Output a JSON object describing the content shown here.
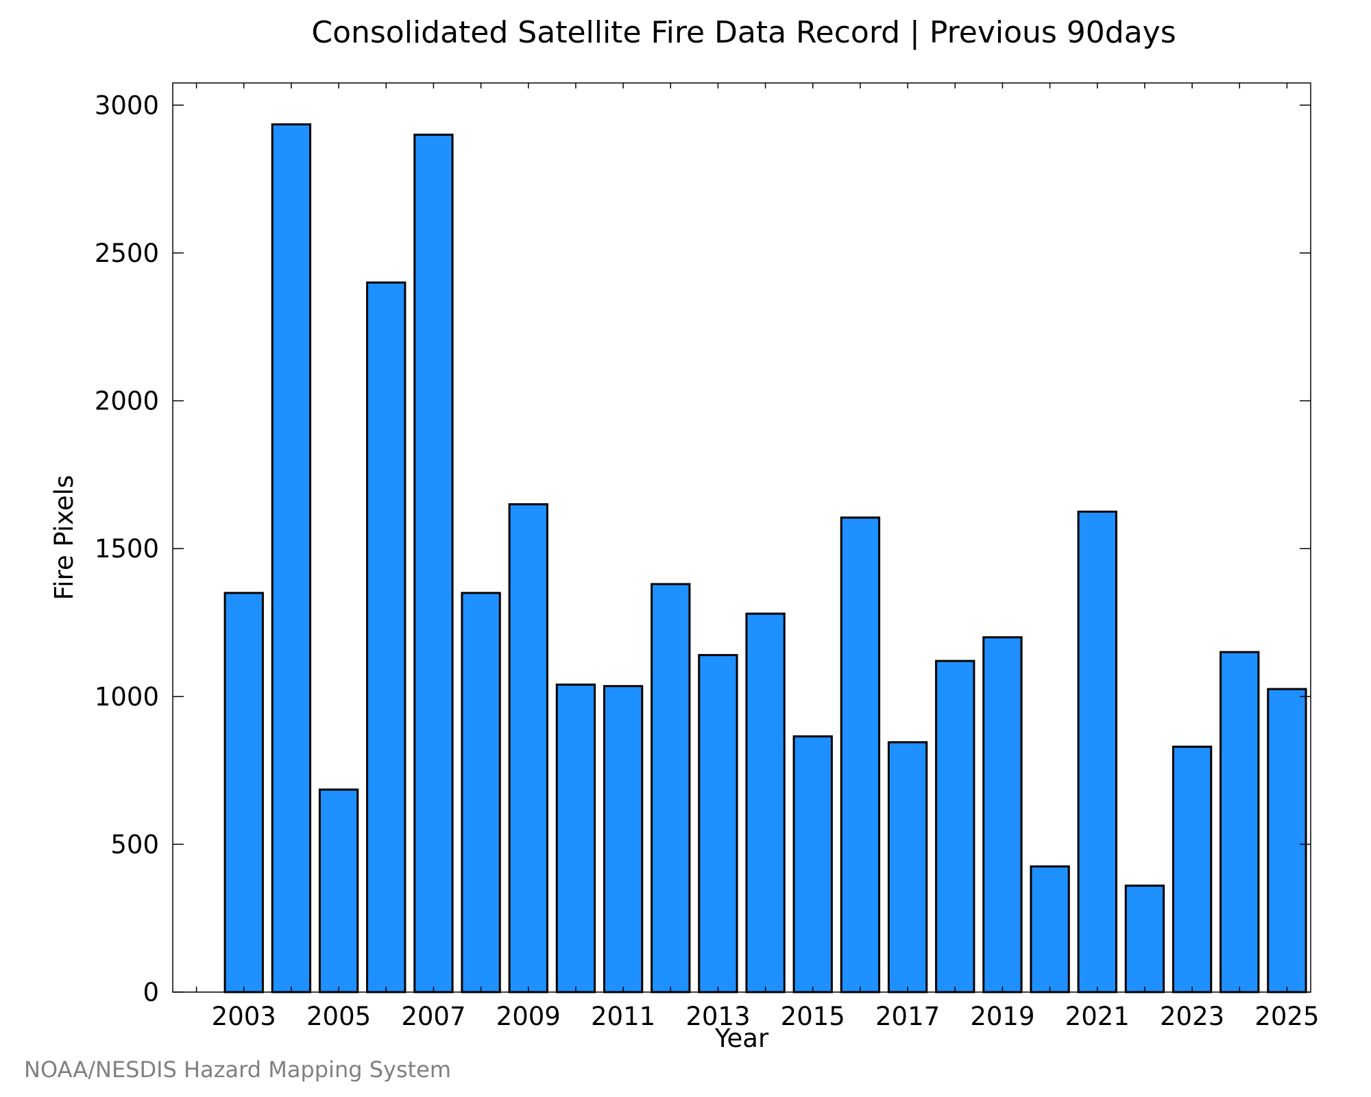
{
  "chart_data": {
    "type": "bar",
    "title": "Consolidated Satellite Fire Data Record | Previous 90days",
    "xlabel": "Year",
    "ylabel": "Fire Pixels",
    "categories": [
      2003,
      2004,
      2005,
      2006,
      2007,
      2008,
      2009,
      2010,
      2011,
      2012,
      2013,
      2014,
      2015,
      2016,
      2017,
      2018,
      2019,
      2020,
      2021,
      2022,
      2023,
      2024,
      2025
    ],
    "values": [
      1350,
      2935,
      685,
      2400,
      2900,
      1350,
      1650,
      1040,
      1035,
      1380,
      1140,
      1280,
      865,
      1605,
      845,
      1120,
      1200,
      425,
      1625,
      360,
      830,
      1150,
      1025
    ],
    "x_tick_labels": [
      "2003",
      "2005",
      "2007",
      "2009",
      "2011",
      "2013",
      "2015",
      "2017",
      "2019",
      "2021",
      "2023",
      "2025"
    ],
    "y_tick_labels": [
      "0",
      "500",
      "1000",
      "1500",
      "2000",
      "2500",
      "3000"
    ],
    "ylim": [
      0,
      3075
    ],
    "xlim": [
      2001.5,
      2025.5
    ],
    "bar_color": "#1e90ff",
    "bar_edge_color": "#000000",
    "grid": false,
    "legend": "none"
  },
  "source_text": "NOAA/NESDIS Hazard Mapping System"
}
